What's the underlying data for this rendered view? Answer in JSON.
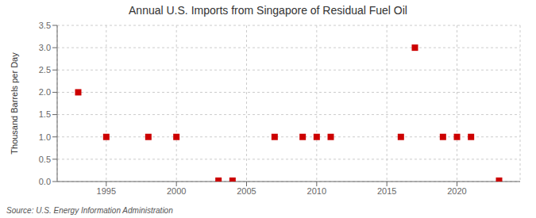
{
  "chart_data": {
    "type": "scatter",
    "title": "Annual U.S. Imports from Singapore of Residual Fuel Oil",
    "y_label": "Thousand Barrels per Day",
    "annotations": [
      "Source: U.S. Energy Information Administration"
    ],
    "x": [
      1993,
      1995,
      1998,
      2000,
      2003,
      2004,
      2007,
      2009,
      2010,
      2011,
      2016,
      2017,
      2019,
      2020,
      2021,
      2023
    ],
    "values": [
      2.0,
      1.0,
      1.0,
      1.0,
      0.02,
      0.02,
      1.0,
      1.0,
      1.0,
      1.0,
      1.0,
      3.0,
      1.0,
      1.0,
      1.0,
      0.02
    ],
    "color": "#cc0000",
    "marker": "square",
    "xlim": [
      1991.5,
      2024.5
    ],
    "xticks": [
      1995,
      2000,
      2005,
      2010,
      2015,
      2020
    ],
    "ylim": [
      0.0,
      3.5
    ],
    "yticks": [
      {
        "value": 0,
        "label": "0.0"
      },
      0.5,
      {
        "value": 1,
        "label": "1.0"
      },
      1.5,
      {
        "value": 2,
        "label": "2.0"
      },
      2.5,
      {
        "value": 3,
        "label": "3.0"
      },
      3.5
    ],
    "grid": true
  }
}
